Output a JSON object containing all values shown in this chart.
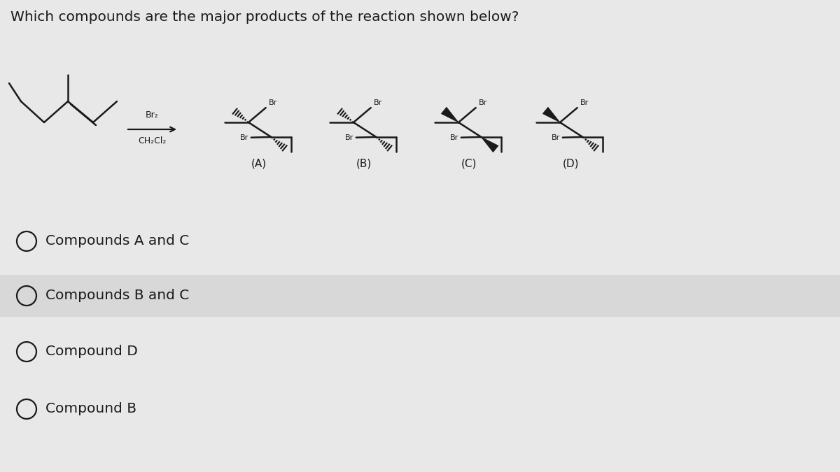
{
  "title": "Which compounds are the major products of the reaction shown below?",
  "title_fontsize": 14.5,
  "bg_color": "#e8e8e8",
  "text_color": "#1a1a1a",
  "reagent_top": "Br₂",
  "reagent_bottom": "CH₂Cl₂",
  "compound_labels": [
    "(A)",
    "(B)",
    "(C)",
    "(D)"
  ],
  "answer_options": [
    "Compounds A and C",
    "Compounds B and C",
    "Compound D",
    "Compound B"
  ],
  "option_bg_alt": "#d8d8d8"
}
